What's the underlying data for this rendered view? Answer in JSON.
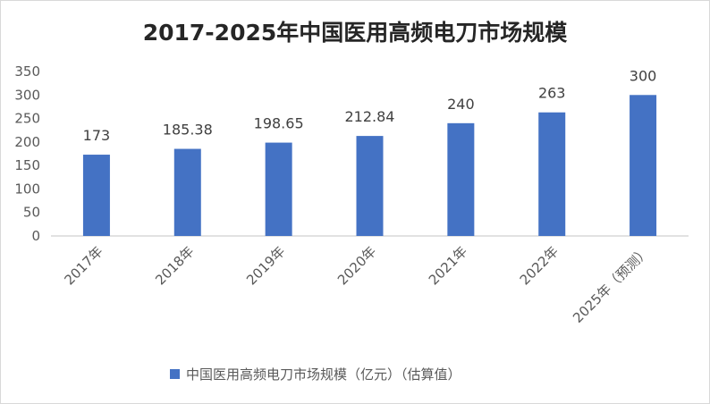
{
  "chart_data": {
    "type": "bar",
    "title": "2017-2025年中国医用高频电刀市场规模",
    "categories": [
      "2017年",
      "2018年",
      "2019年",
      "2020年",
      "2021年",
      "2022年",
      "2025年（预测）"
    ],
    "series": [
      {
        "name": "中国医用高频电刀市场规模（亿元）（估算值）",
        "values": [
          173,
          185.38,
          198.65,
          212.84,
          240,
          263,
          300
        ],
        "labels": [
          "173",
          "185.38",
          "198.65",
          "212.84",
          "240",
          "263",
          "300"
        ],
        "color": "#4472c4"
      }
    ],
    "yticks": [
      "0",
      "50",
      "100",
      "150",
      "200",
      "250",
      "300",
      "350"
    ],
    "ylim": [
      0,
      350
    ],
    "grid": false,
    "legend": "bottom"
  }
}
